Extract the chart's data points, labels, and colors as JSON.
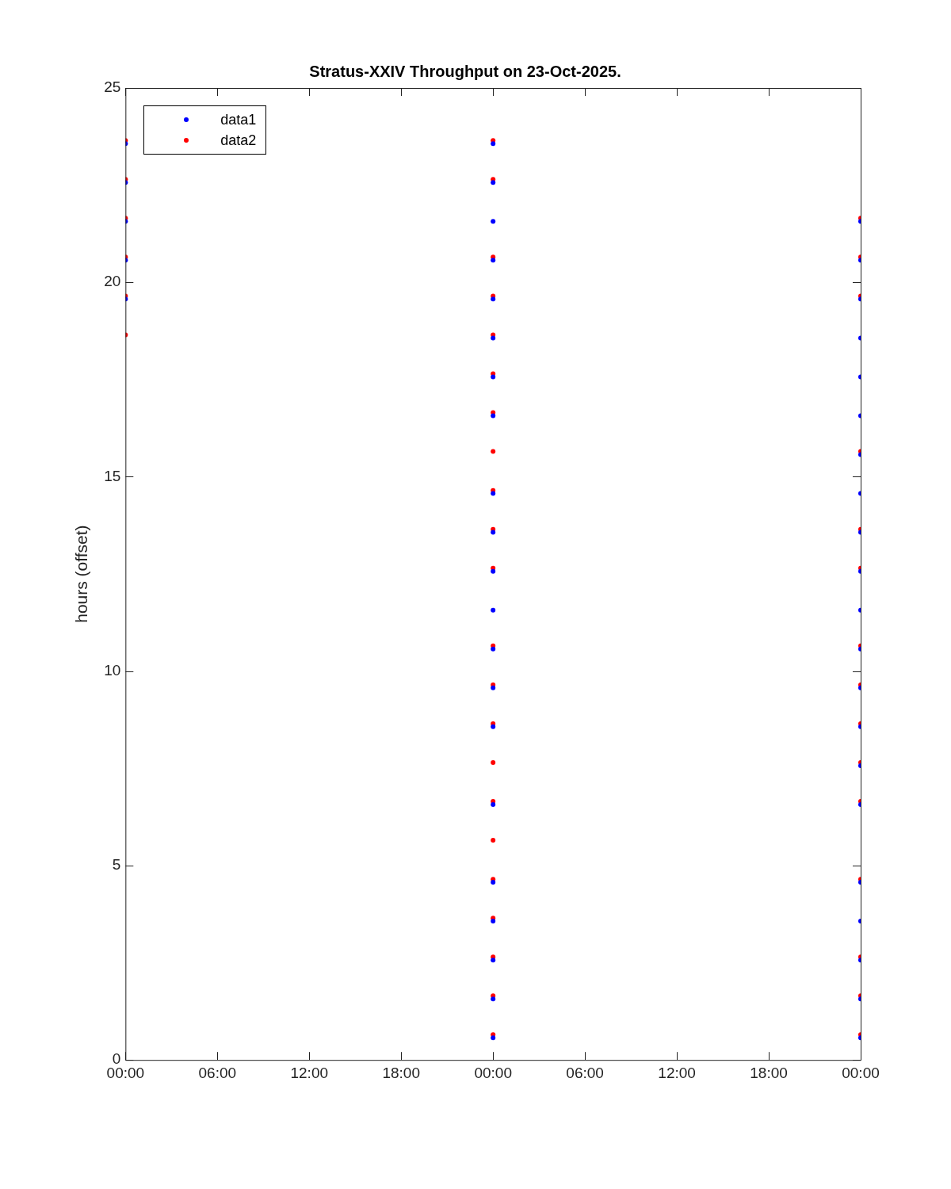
{
  "chart_data": {
    "type": "scatter",
    "title": "Stratus-XXIV Throughput on 23-Oct-2025.",
    "ylabel": "hours (offset)",
    "xlim": [
      "2025-10-23T00:00",
      "2025-10-25T00:00"
    ],
    "xticks": [
      {
        "value": "2025-10-23T00:00",
        "label": "00:00"
      },
      {
        "value": "2025-10-23T06:00",
        "label": "06:00"
      },
      {
        "value": "2025-10-23T12:00",
        "label": "12:00"
      },
      {
        "value": "2025-10-23T18:00",
        "label": "18:00"
      },
      {
        "value": "2025-10-24T00:00",
        "label": "00:00"
      },
      {
        "value": "2025-10-24T06:00",
        "label": "06:00"
      },
      {
        "value": "2025-10-24T12:00",
        "label": "12:00"
      },
      {
        "value": "2025-10-24T18:00",
        "label": "18:00"
      },
      {
        "value": "2025-10-25T00:00",
        "label": "00:00"
      }
    ],
    "ylim": [
      0,
      25
    ],
    "yticks": [
      0,
      5,
      10,
      15,
      20,
      25
    ],
    "grid": false,
    "legend": "top left",
    "marker": "circle",
    "series": [
      {
        "name": "data1",
        "color": "#0000ff",
        "x": [
          "2025-10-23T00:00",
          "2025-10-23T00:00",
          "2025-10-23T00:00",
          "2025-10-23T00:00",
          "2025-10-23T00:00",
          "2025-10-24T00:00",
          "2025-10-24T00:00",
          "2025-10-24T00:00",
          "2025-10-24T00:00",
          "2025-10-24T00:00",
          "2025-10-24T00:00",
          "2025-10-24T00:00",
          "2025-10-24T00:00",
          "2025-10-24T00:00",
          "2025-10-24T00:00",
          "2025-10-24T00:00",
          "2025-10-24T00:00",
          "2025-10-24T00:00",
          "2025-10-24T00:00",
          "2025-10-24T00:00",
          "2025-10-24T00:00",
          "2025-10-24T00:00",
          "2025-10-24T00:00",
          "2025-10-24T00:00",
          "2025-10-24T00:00",
          "2025-10-24T00:00",
          "2025-10-25T00:00",
          "2025-10-25T00:00",
          "2025-10-25T00:00",
          "2025-10-25T00:00",
          "2025-10-25T00:00",
          "2025-10-25T00:00",
          "2025-10-25T00:00",
          "2025-10-25T00:00",
          "2025-10-25T00:00",
          "2025-10-25T00:00",
          "2025-10-25T00:00",
          "2025-10-25T00:00",
          "2025-10-25T00:00",
          "2025-10-25T00:00",
          "2025-10-25T00:00",
          "2025-10-25T00:00",
          "2025-10-25T00:00",
          "2025-10-25T00:00",
          "2025-10-25T00:00",
          "2025-10-25T00:00",
          "2025-10-25T00:00"
        ],
        "values": [
          19.57,
          20.57,
          21.57,
          22.57,
          23.57,
          0.57,
          1.57,
          2.57,
          3.57,
          4.57,
          6.57,
          8.57,
          9.57,
          10.57,
          11.57,
          12.57,
          13.57,
          14.57,
          16.57,
          17.57,
          18.57,
          19.57,
          20.57,
          21.57,
          22.57,
          23.57,
          0.57,
          1.57,
          2.57,
          3.57,
          4.57,
          6.57,
          7.57,
          8.57,
          9.57,
          10.57,
          11.57,
          12.57,
          13.57,
          14.57,
          15.57,
          16.57,
          17.57,
          18.57,
          19.57,
          20.57,
          21.57
        ]
      },
      {
        "name": "data2",
        "color": "#ff0000",
        "x": [
          "2025-10-23T00:00",
          "2025-10-23T00:00",
          "2025-10-23T00:00",
          "2025-10-23T00:00",
          "2025-10-23T00:00",
          "2025-10-23T00:00",
          "2025-10-24T00:00",
          "2025-10-24T00:00",
          "2025-10-24T00:00",
          "2025-10-24T00:00",
          "2025-10-24T00:00",
          "2025-10-24T00:00",
          "2025-10-24T00:00",
          "2025-10-24T00:00",
          "2025-10-24T00:00",
          "2025-10-24T00:00",
          "2025-10-24T00:00",
          "2025-10-24T00:00",
          "2025-10-24T00:00",
          "2025-10-24T00:00",
          "2025-10-24T00:00",
          "2025-10-24T00:00",
          "2025-10-24T00:00",
          "2025-10-24T00:00",
          "2025-10-24T00:00",
          "2025-10-24T00:00",
          "2025-10-24T00:00",
          "2025-10-24T00:00",
          "2025-10-25T00:00",
          "2025-10-25T00:00",
          "2025-10-25T00:00",
          "2025-10-25T00:00",
          "2025-10-25T00:00",
          "2025-10-25T00:00",
          "2025-10-25T00:00",
          "2025-10-25T00:00",
          "2025-10-25T00:00",
          "2025-10-25T00:00",
          "2025-10-25T00:00",
          "2025-10-25T00:00",
          "2025-10-25T00:00",
          "2025-10-25T00:00",
          "2025-10-25T00:00"
        ],
        "values": [
          18.65,
          19.65,
          20.65,
          21.65,
          22.65,
          23.65,
          0.65,
          1.65,
          2.65,
          3.65,
          4.65,
          5.65,
          6.65,
          7.65,
          8.65,
          9.65,
          10.65,
          12.65,
          13.65,
          14.65,
          15.65,
          16.65,
          17.65,
          18.65,
          19.65,
          20.65,
          22.65,
          23.65,
          0.65,
          1.65,
          2.65,
          4.65,
          6.65,
          7.65,
          8.65,
          9.65,
          10.65,
          12.65,
          13.65,
          15.65,
          19.65,
          20.65,
          21.65
        ]
      }
    ]
  }
}
